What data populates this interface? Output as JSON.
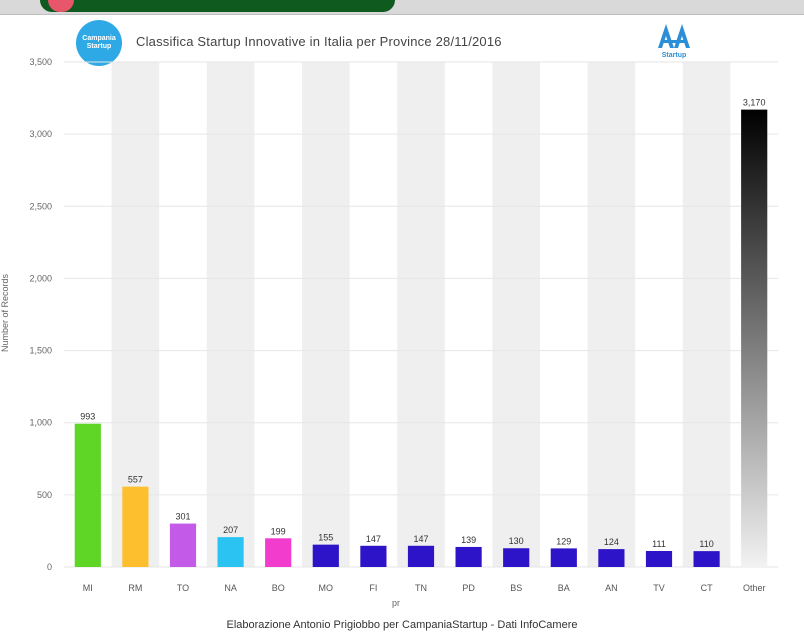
{
  "header": {
    "title": "Classifica Startup Innovative in Italia per Province 28/11/2016",
    "logo_left_text": "Campania Startup",
    "logo_right_text": "Startup"
  },
  "credit": "Elaborazione Antonio Prigiobbo per CampaniaStartup - Dati InfoCamere",
  "colors": {
    "strip_green": "#0f5a1e",
    "strip_pink": "#e8566c",
    "header_logo": "#2fa9e6",
    "startup_logo": "#2b8fd8",
    "column_band": "#efefef",
    "gridline": "#e6e6e6"
  },
  "chart_data": {
    "type": "bar",
    "title": "Classifica Startup Innovative in Italia per Province 28/11/2016",
    "xlabel": "pr",
    "ylabel": "Number of Records",
    "ylim": [
      0,
      3500
    ],
    "yticks": [
      0,
      500,
      1000,
      1500,
      2000,
      2500,
      3000,
      3500
    ],
    "ytick_labels": [
      "0",
      "500",
      "1,000",
      "1,500",
      "2,000",
      "2,500",
      "3,000",
      "3,500"
    ],
    "grid": true,
    "categories": [
      "MI",
      "RM",
      "TO",
      "NA",
      "BO",
      "MO",
      "FI",
      "TN",
      "PD",
      "BS",
      "BA",
      "AN",
      "TV",
      "CT",
      "Other"
    ],
    "values": [
      993,
      557,
      301,
      207,
      199,
      155,
      147,
      147,
      139,
      130,
      129,
      124,
      111,
      110,
      3170
    ],
    "value_labels": [
      "993",
      "557",
      "301",
      "207",
      "199",
      "155",
      "147",
      "147",
      "139",
      "130",
      "129",
      "124",
      "111",
      "110",
      "3,170"
    ],
    "bar_colors": [
      "#5fd625",
      "#fdbf2e",
      "#c35be8",
      "#2bc4f2",
      "#f23ccd",
      "#2e14c8",
      "#2e14c8",
      "#2e14c8",
      "#2e14c8",
      "#2e14c8",
      "#2e14c8",
      "#2e14c8",
      "#2e14c8",
      "#2e14c8",
      "gradient"
    ],
    "band_columns": [
      "RM",
      "NA",
      "MO",
      "TN",
      "BS",
      "AN",
      "CT"
    ]
  }
}
